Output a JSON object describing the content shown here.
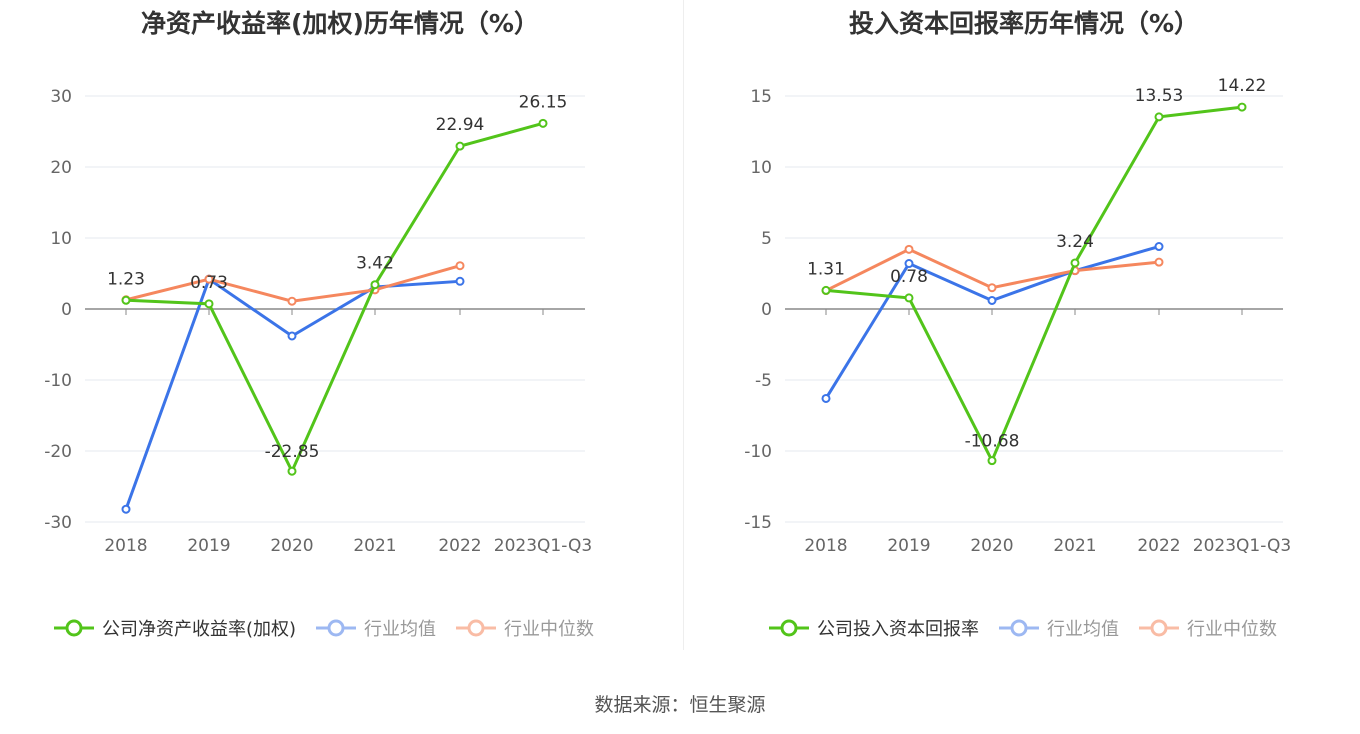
{
  "source": "数据来源：恒生聚源",
  "colors": {
    "company": "#52c41a",
    "avg": "#3b74e8",
    "median": "#f5875e"
  },
  "chart_data": [
    {
      "type": "line",
      "title": "净资产收益率(加权)历年情况（%）",
      "categories": [
        "2018",
        "2019",
        "2020",
        "2021",
        "2022",
        "2023Q1-Q3"
      ],
      "yticks": [
        "30",
        "20",
        "10",
        "0",
        "-10",
        "-20",
        "-30"
      ],
      "ylim": [
        -30,
        30
      ],
      "series": [
        {
          "name": "公司净资产收益率(加权)",
          "values": [
            1.23,
            0.73,
            -22.85,
            3.42,
            22.94,
            26.15
          ],
          "labels": [
            "1.23",
            "0.73",
            "-22.85",
            "3.42",
            "22.94",
            "26.15"
          ]
        },
        {
          "name": "行业均值",
          "values": [
            -28.2,
            4.2,
            -3.8,
            3.1,
            3.9,
            null
          ]
        },
        {
          "name": "行业中位数",
          "values": [
            1.3,
            4.2,
            1.1,
            2.7,
            6.1,
            null
          ]
        }
      ]
    },
    {
      "type": "line",
      "title": "投入资本回报率历年情况（%）",
      "categories": [
        "2018",
        "2019",
        "2020",
        "2021",
        "2022",
        "2023Q1-Q3"
      ],
      "yticks": [
        "15",
        "10",
        "5",
        "0",
        "-5",
        "-10",
        "-15"
      ],
      "ylim": [
        -15,
        15
      ],
      "series": [
        {
          "name": "公司投入资本回报率",
          "values": [
            1.31,
            0.78,
            -10.68,
            3.24,
            13.53,
            14.22
          ],
          "labels": [
            "1.31",
            "0.78",
            "-10.68",
            "3.24",
            "13.53",
            "14.22"
          ]
        },
        {
          "name": "行业均值",
          "values": [
            -6.3,
            3.2,
            0.6,
            2.7,
            4.4,
            null
          ]
        },
        {
          "name": "行业中位数",
          "values": [
            1.3,
            4.2,
            1.5,
            2.7,
            3.3,
            null
          ]
        }
      ]
    }
  ]
}
